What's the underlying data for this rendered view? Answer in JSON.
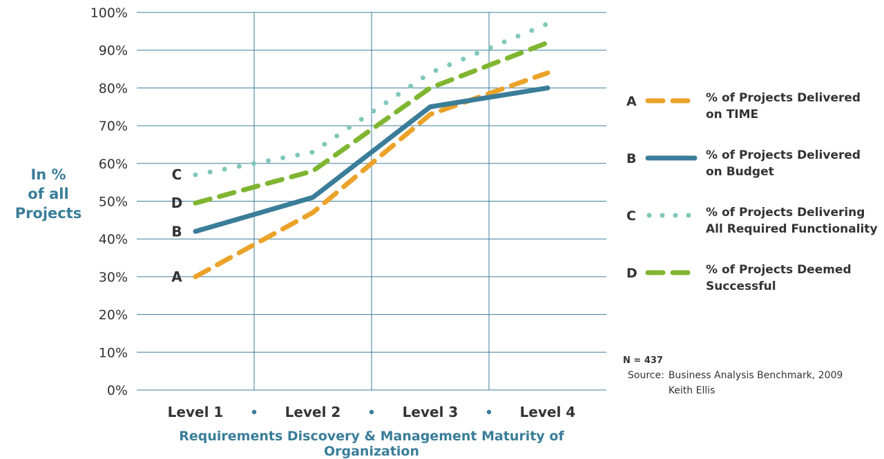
{
  "chart_data": {
    "type": "line",
    "categories": [
      "Level 1",
      "Level 2",
      "Level 3",
      "Level 4"
    ],
    "y_tick_labels": [
      "0%",
      "10%",
      "20%",
      "30%",
      "40%",
      "50%",
      "60%",
      "70%",
      "80%",
      "90%",
      "100%"
    ],
    "ylim": [
      0,
      100
    ],
    "ylabel": "In %\nof all\nProjects",
    "xlabel": "Requirements Discovery & Management Maturity of Organization",
    "grid": true,
    "legend_position": "right",
    "series": [
      {
        "key": "A",
        "name": "% of Projects Delivered\non TIME",
        "style": "dashed",
        "color": "#eba229",
        "values": [
          30,
          47,
          73,
          84
        ]
      },
      {
        "key": "B",
        "name": "% of Projects Delivered\non Budget",
        "style": "solid",
        "color": "#3a7d99",
        "values": [
          42,
          51,
          75,
          80
        ]
      },
      {
        "key": "C",
        "name": "% of Projects Delivering\nAll Required Functionality",
        "style": "dotted",
        "color": "#80c7bb",
        "values": [
          57,
          63,
          84,
          97
        ]
      },
      {
        "key": "D",
        "name": "% of Projects Deemed\nSuccessful",
        "style": "dashed",
        "color": "#7fb531",
        "values": [
          49.5,
          58,
          80,
          92
        ]
      }
    ],
    "start_labels_order": [
      "C",
      "D",
      "B",
      "A"
    ]
  },
  "notes": {
    "n": "N = 437",
    "source_label": "Source:",
    "source_lines": "Business Analysis Benchmark, 2009\nKeith Ellis"
  }
}
